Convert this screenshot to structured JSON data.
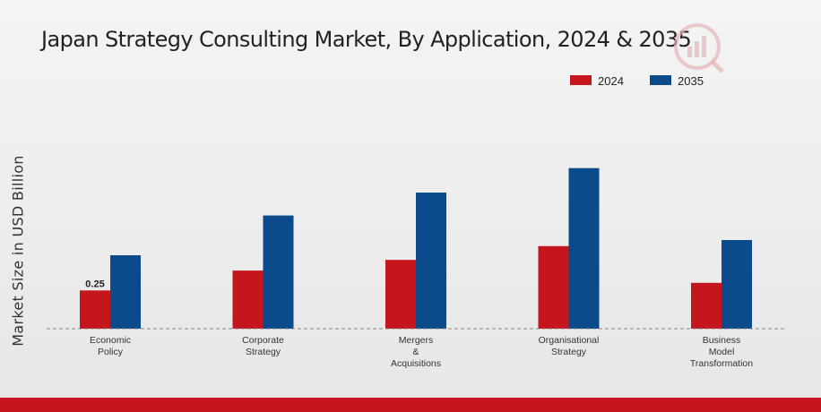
{
  "chart_data": {
    "type": "bar",
    "title": "Japan Strategy Consulting Market, By Application, 2024 & 2035",
    "ylabel": "Market Size in USD Billion",
    "xlabel": "",
    "categories": [
      [
        "Economic",
        "Policy"
      ],
      [
        "Corporate",
        "Strategy"
      ],
      [
        "Mergers",
        "&",
        "Acquisitions"
      ],
      [
        "Organisational",
        "Strategy"
      ],
      [
        "Business",
        "Model",
        "Transformation"
      ]
    ],
    "series": [
      {
        "name": "2024",
        "color": "#c4161c",
        "values": [
          0.25,
          0.38,
          0.45,
          0.54,
          0.3
        ]
      },
      {
        "name": "2035",
        "color": "#0b4a8b",
        "values": [
          0.48,
          0.74,
          0.89,
          1.05,
          0.58
        ]
      }
    ],
    "data_labels": [
      {
        "series": 0,
        "index": 0,
        "text": "0.25"
      }
    ],
    "ylim": [
      0,
      1.3
    ],
    "grid": false,
    "legend_position": "top-right"
  }
}
